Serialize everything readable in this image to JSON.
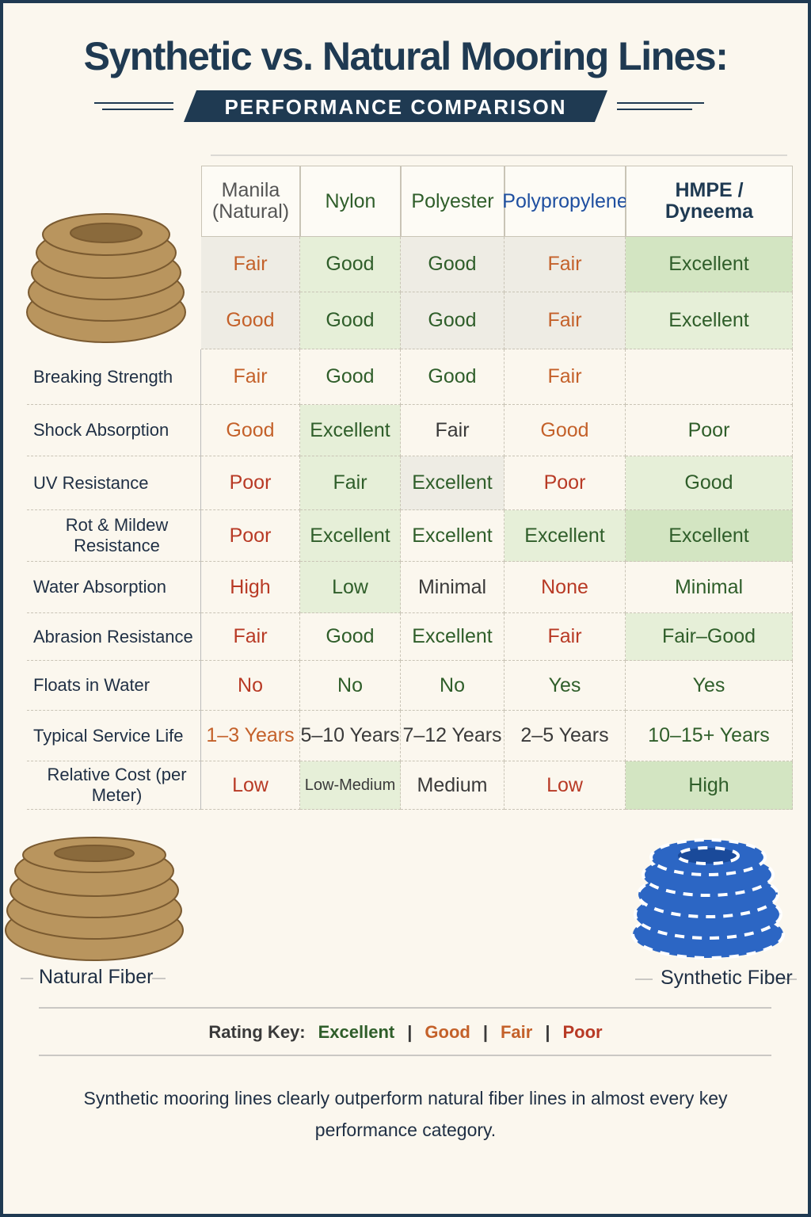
{
  "header": {
    "title": "Synthetic vs. Natural Mooring Lines:",
    "subtitle": "PERFORMANCE COMPARISON"
  },
  "table": {
    "columns": [
      "Manila (Natural)",
      "Nylon",
      "Polyester",
      "Polypropylene",
      "HMPE / Dyneema"
    ],
    "rows": [
      {
        "label": null,
        "cells": [
          "Fair",
          "Good",
          "Good",
          "Fair",
          "Excellent"
        ]
      },
      {
        "label": null,
        "cells": [
          "Good",
          "Good",
          "Good",
          "Fair",
          "Excellent"
        ]
      },
      {
        "label": "Breaking Strength",
        "cells": [
          "Fair",
          "Good",
          "Good",
          "Fair",
          null
        ]
      },
      {
        "label": "Shock Absorption",
        "cells": [
          "Good",
          "Excellent",
          "Fair",
          "Good",
          "Poor"
        ]
      },
      {
        "label": "UV Resistance",
        "cells": [
          "Poor",
          "Fair",
          "Excellent",
          "Poor",
          "Good"
        ]
      },
      {
        "label": "Rot & Mildew Resistance",
        "cells": [
          "Poor",
          "Excellent",
          "Excellent",
          "Excellent",
          "Excellent"
        ]
      },
      {
        "label": "Water Absorption",
        "cells": [
          "High",
          "Low",
          "Minimal",
          "None",
          "Minimal"
        ]
      },
      {
        "label": "Abrasion Resistance",
        "cells": [
          "Fair",
          "Good",
          "Excellent",
          "Fair",
          "Fair–Good"
        ]
      },
      {
        "label": "Floats in Water",
        "cells": [
          "No",
          "No",
          "No",
          "Yes",
          "Yes"
        ]
      },
      {
        "label": "Typical Service Life",
        "cells": [
          "1–3 Years",
          "5–10 Years",
          "7–12 Years",
          "2–5 Years",
          "10–15+ Years"
        ]
      },
      {
        "label": "Relative Cost (per Meter)",
        "cells": [
          "Low",
          "Low-Medium",
          "Medium",
          "Low",
          "High"
        ]
      }
    ]
  },
  "captions": {
    "natural": "Natural Fiber",
    "synthetic": "Synthetic Fiber"
  },
  "key": {
    "label": "Rating Key:",
    "items": [
      "Excellent",
      "Good",
      "Fair",
      "Poor"
    ]
  },
  "footer": "Synthetic mooring lines clearly outperform natural fiber lines in almost every key performance category."
}
